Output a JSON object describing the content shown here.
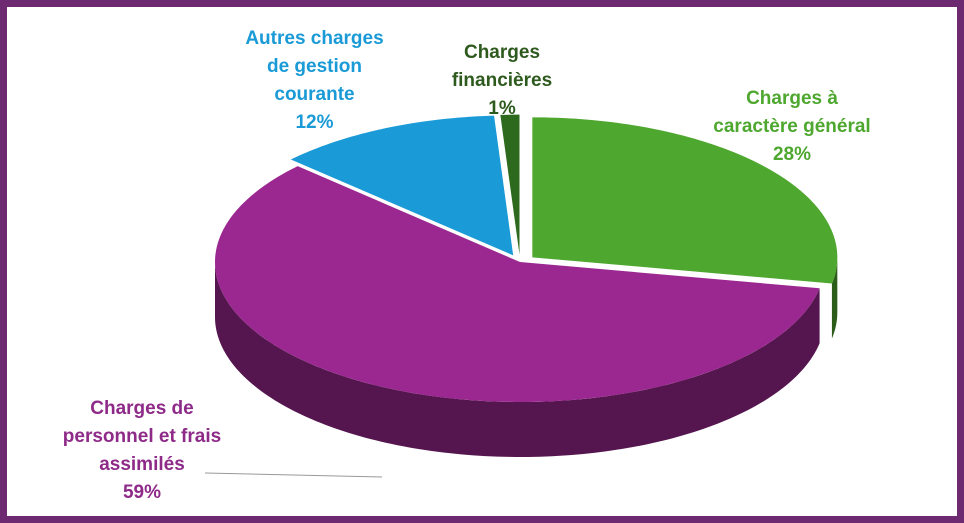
{
  "chart_data": {
    "type": "pie",
    "categories": [
      "Charges à caractère général",
      "Charges de personnel et frais assimilés",
      "Autres charges de gestion courante",
      "Charges financières"
    ],
    "values": [
      28,
      59,
      12,
      1
    ],
    "value_labels": [
      "28%",
      "59%",
      "12%",
      "1%"
    ],
    "colors": [
      "#4ea72e",
      "#9b2890",
      "#1a9ad6",
      "#2e6a1e"
    ],
    "label_colors": [
      "#4ea72e",
      "#8e2a88",
      "#1a9ad6",
      "#2e5a1e"
    ]
  }
}
